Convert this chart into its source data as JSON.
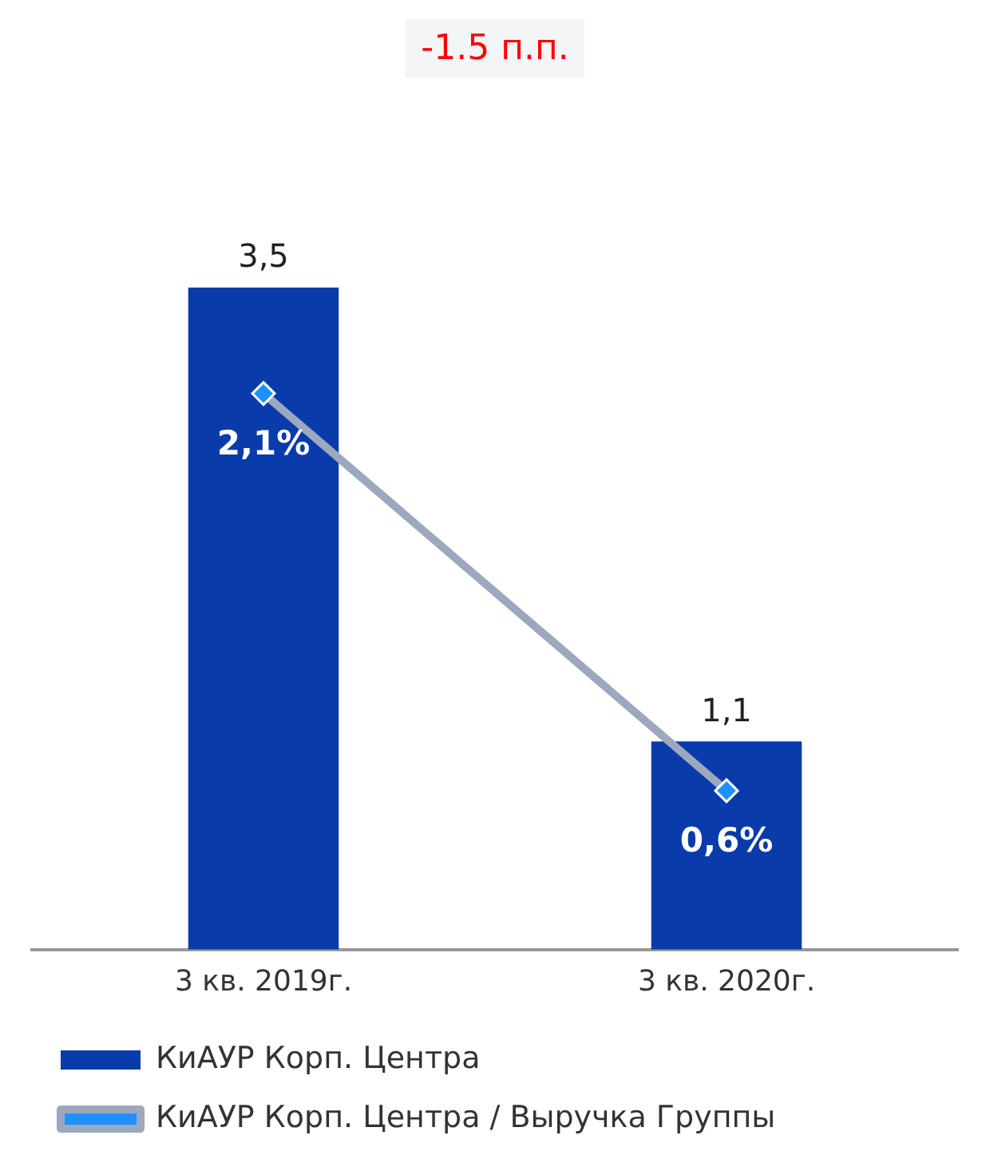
{
  "chart_data": {
    "type": "bar",
    "annotations": [
      "-1.5 п.п."
    ],
    "categories": [
      "3 кв. 2019г.",
      "3 кв. 2020г."
    ],
    "series": [
      {
        "name": "КиАУР Корп. Центра",
        "color": "#0a3bab",
        "values": [
          3.5,
          1.1
        ],
        "value_labels": [
          "3,5",
          "1,1"
        ]
      },
      {
        "name": "КиАУР Корп. Центра / Выручка Группы",
        "type": "line",
        "axis": "y2",
        "color": "#9ca8bd",
        "values": [
          2.1,
          0.6
        ],
        "value_labels": [
          "2,1%",
          "0,6%"
        ]
      }
    ],
    "marker": "diamond",
    "grid": false,
    "legend": "bottom"
  }
}
